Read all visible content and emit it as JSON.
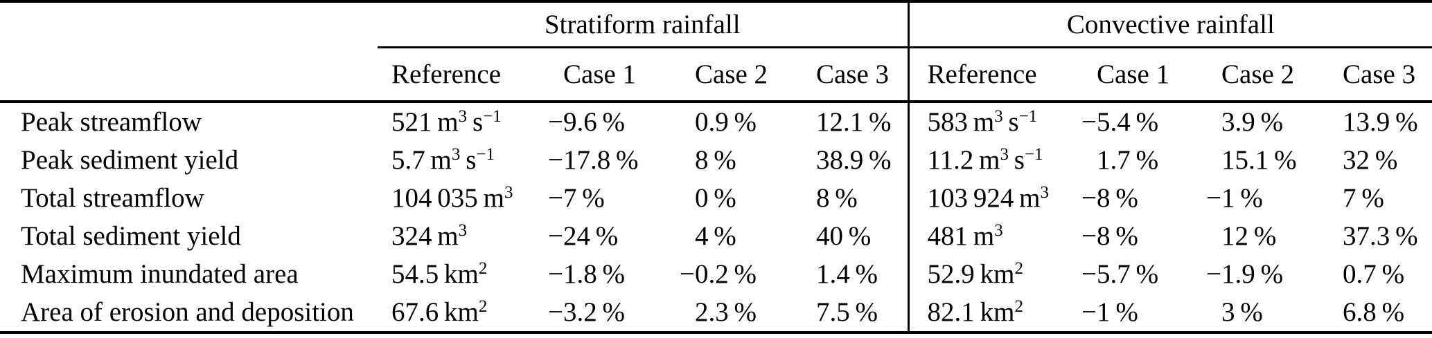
{
  "page": {
    "background_color": "#ffffff",
    "text_color": "#000000",
    "rule_color": "#000000"
  },
  "table": {
    "group_headers": [
      {
        "label": "Stratiform rainfall"
      },
      {
        "label": "Convective rainfall"
      }
    ],
    "subheaders": [
      "Reference",
      "Case 1",
      "Case 2",
      "Case 3"
    ],
    "rows": [
      {
        "label": "Peak streamflow",
        "stratiform": [
          "521 m³ s⁻¹",
          "−9.6 %",
          "0.9 %",
          "12.1 %"
        ],
        "convective": [
          "583 m³ s⁻¹",
          "−5.4 %",
          "3.9 %",
          "13.9 %"
        ]
      },
      {
        "label": "Peak sediment yield",
        "stratiform": [
          "5.7 m³ s⁻¹",
          "−17.8 %",
          "8 %",
          "38.9 %"
        ],
        "convective": [
          "11.2 m³ s⁻¹",
          "1.7 %",
          "15.1 %",
          "32 %"
        ]
      },
      {
        "label": "Total streamflow",
        "stratiform": [
          "104 035 m³",
          "−7 %",
          "0 %",
          "8 %"
        ],
        "convective": [
          "103 924 m³",
          "−8 %",
          "−1 %",
          "7 %"
        ]
      },
      {
        "label": "Total sediment yield",
        "stratiform": [
          "324 m³",
          "−24 %",
          "4 %",
          "40 %"
        ],
        "convective": [
          "481 m³",
          "−8 %",
          "12 %",
          "37.3 %"
        ]
      },
      {
        "label": "Maximum inundated area",
        "stratiform": [
          "54.5 km²",
          "−1.8 %",
          "−0.2 %",
          "1.4 %"
        ],
        "convective": [
          "52.9 km²",
          "−5.7 %",
          "−1.9 %",
          "0.7 %"
        ]
      },
      {
        "label": "Area of erosion and deposition",
        "stratiform": [
          "67.6 km²",
          "−3.2 %",
          "2.3 %",
          "7.5 %"
        ],
        "convective": [
          "82.1 km²",
          "−1 %",
          "3 %",
          "6.8 %"
        ]
      }
    ]
  },
  "chart_data": {
    "type": "table",
    "row_labels": [
      "Peak streamflow",
      "Peak sediment yield",
      "Total streamflow",
      "Total sediment yield",
      "Maximum inundated area",
      "Area of erosion and deposition"
    ],
    "column_groups": [
      "Stratiform rainfall",
      "Convective rainfall"
    ],
    "columns_per_group": [
      "Reference",
      "Case 1",
      "Case 2",
      "Case 3"
    ],
    "stratiform": {
      "reference": [
        "521 m³ s⁻¹",
        "5.7 m³ s⁻¹",
        "104 035 m³",
        "324 m³",
        "54.5 km²",
        "67.6 km²"
      ],
      "case1_pct": [
        -9.6,
        -17.8,
        -7,
        -24,
        -1.8,
        -3.2
      ],
      "case2_pct": [
        0.9,
        8,
        0,
        4,
        -0.2,
        2.3
      ],
      "case3_pct": [
        12.1,
        38.9,
        8,
        40,
        1.4,
        7.5
      ]
    },
    "convective": {
      "reference": [
        "583 m³ s⁻¹",
        "11.2 m³ s⁻¹",
        "103 924 m³",
        "481 m³",
        "52.9 km²",
        "82.1 km²"
      ],
      "case1_pct": [
        -5.4,
        1.7,
        -8,
        -8,
        -5.7,
        -1
      ],
      "case2_pct": [
        3.9,
        15.1,
        -1,
        12,
        -1.9,
        3
      ],
      "case3_pct": [
        13.9,
        32,
        7,
        37.3,
        0.7,
        6.8
      ]
    }
  }
}
